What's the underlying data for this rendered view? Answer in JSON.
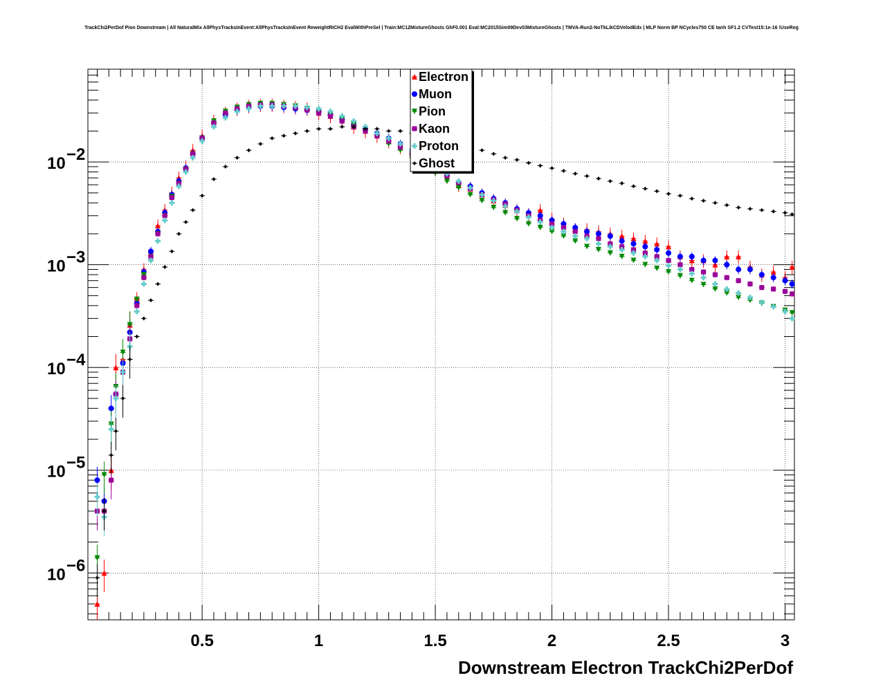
{
  "chart_data": {
    "type": "scatter",
    "title": "TrackChi2PerDof Pion Downstream | All NaturalMix AllPhysTracksInEvent:AllPhysTracksInEvent ReweightRICH2 EvalWithPreSel | Train:MC12MixtureGhosts GhF0.001 Eval:MC2015Sim09Dev03MixtureGhosts | TMVA-Run2-NoTkLikCDVelodEdx | MLP Norm BP NCycles750 CE tanh SF1.2 CVTest15:1e-16 !UseReg",
    "xlabel": "Downstream Electron TrackChi2PerDof",
    "ylabel": "",
    "xlim": [
      0.01,
      3.04
    ],
    "ylim": [
      3.5e-07,
      0.08
    ],
    "yscale": "log",
    "grid": true,
    "legend_position": "top-center",
    "x_ticks": [
      {
        "value": 0.5,
        "label": "0.5"
      },
      {
        "value": 1.0,
        "label": "1"
      },
      {
        "value": 1.5,
        "label": "1.5"
      },
      {
        "value": 2.0,
        "label": "2"
      },
      {
        "value": 2.5,
        "label": "2.5"
      },
      {
        "value": 3.0,
        "label": "3"
      }
    ],
    "y_ticks": [
      {
        "exp": -2,
        "base": "10",
        "label": "−2"
      },
      {
        "exp": -3,
        "base": "10",
        "label": "−3"
      },
      {
        "exp": -4,
        "base": "10",
        "label": "−4"
      },
      {
        "exp": -5,
        "base": "10",
        "label": "−5"
      },
      {
        "exp": -6,
        "base": "10",
        "label": "−6"
      }
    ],
    "series": [
      {
        "name": "Electron",
        "color": "#ff0000",
        "marker": "triangle-up",
        "x": [
          0.05,
          0.08,
          0.11,
          0.13,
          0.16,
          0.19,
          0.22,
          0.25,
          0.28,
          0.31,
          0.34,
          0.37,
          0.4,
          0.43,
          0.46,
          0.5,
          0.55,
          0.6,
          0.65,
          0.7,
          0.75,
          0.8,
          0.85,
          0.9,
          0.95,
          1.0,
          1.05,
          1.1,
          1.15,
          1.2,
          1.25,
          1.3,
          1.35,
          1.4,
          1.45,
          1.5,
          1.55,
          1.6,
          1.65,
          1.7,
          1.75,
          1.8,
          1.85,
          1.9,
          1.95,
          2.0,
          2.05,
          2.1,
          2.15,
          2.2,
          2.25,
          2.3,
          2.35,
          2.4,
          2.45,
          2.5,
          2.55,
          2.6,
          2.65,
          2.7,
          2.75,
          2.8,
          2.85,
          2.9,
          2.95,
          3.0,
          3.03
        ],
        "y": [
          5e-07,
          1e-06,
          1e-05,
          0.0001,
          0.00012,
          0.00026,
          0.00047,
          0.0009,
          0.0013,
          0.0024,
          0.0034,
          0.005,
          0.007,
          0.009,
          0.013,
          0.018,
          0.025,
          0.03,
          0.033,
          0.035,
          0.036,
          0.036,
          0.035,
          0.034,
          0.033,
          0.03,
          0.028,
          0.026,
          0.022,
          0.02,
          0.018,
          0.016,
          0.014,
          0.012,
          0.01,
          0.0085,
          0.0072,
          0.006,
          0.0055,
          0.0048,
          0.0042,
          0.0038,
          0.0034,
          0.0031,
          0.0034,
          0.0028,
          0.0025,
          0.0022,
          0.0022,
          0.0021,
          0.002,
          0.0019,
          0.0018,
          0.0017,
          0.0016,
          0.0015,
          0.0012,
          0.0011,
          0.0011,
          0.001,
          0.0012,
          0.0012,
          0.00095,
          0.0008,
          0.00085,
          0.00075,
          0.00095
        ],
        "yerr_rel": 0.15
      },
      {
        "name": "Muon",
        "color": "#0000ff",
        "marker": "circle",
        "x": [
          0.05,
          0.08,
          0.11,
          0.13,
          0.16,
          0.19,
          0.22,
          0.25,
          0.28,
          0.31,
          0.34,
          0.37,
          0.4,
          0.43,
          0.46,
          0.5,
          0.55,
          0.6,
          0.65,
          0.7,
          0.75,
          0.8,
          0.85,
          0.9,
          0.95,
          1.0,
          1.05,
          1.1,
          1.15,
          1.2,
          1.25,
          1.3,
          1.35,
          1.4,
          1.45,
          1.5,
          1.55,
          1.6,
          1.65,
          1.7,
          1.75,
          1.8,
          1.85,
          1.9,
          1.95,
          2.0,
          2.05,
          2.1,
          2.15,
          2.2,
          2.25,
          2.3,
          2.35,
          2.4,
          2.45,
          2.5,
          2.55,
          2.6,
          2.65,
          2.7,
          2.75,
          2.8,
          2.85,
          2.9,
          2.95,
          3.0,
          3.03
        ],
        "y": [
          8e-06,
          5e-06,
          4e-05,
          5.5e-05,
          0.00011,
          0.00022,
          0.00042,
          0.00085,
          0.00135,
          0.0021,
          0.0032,
          0.0048,
          0.0065,
          0.0087,
          0.012,
          0.017,
          0.024,
          0.029,
          0.032,
          0.034,
          0.035,
          0.035,
          0.034,
          0.033,
          0.032,
          0.031,
          0.029,
          0.026,
          0.023,
          0.021,
          0.019,
          0.017,
          0.015,
          0.013,
          0.011,
          0.009,
          0.0075,
          0.0063,
          0.0058,
          0.005,
          0.0044,
          0.004,
          0.0035,
          0.0032,
          0.003,
          0.0027,
          0.0025,
          0.0023,
          0.0021,
          0.002,
          0.0019,
          0.0017,
          0.0016,
          0.0015,
          0.0014,
          0.0013,
          0.0012,
          0.0012,
          0.0011,
          0.0011,
          0.001,
          0.0009,
          0.0009,
          0.0008,
          0.00075,
          0.0007,
          0.00065
        ],
        "yerr_rel": 0.1
      },
      {
        "name": "Pion",
        "color": "#008800",
        "marker": "triangle-down",
        "x": [
          0.05,
          0.08,
          0.11,
          0.13,
          0.16,
          0.19,
          0.22,
          0.25,
          0.28,
          0.31,
          0.34,
          0.37,
          0.4,
          0.43,
          0.46,
          0.5,
          0.55,
          0.6,
          0.65,
          0.7,
          0.75,
          0.8,
          0.85,
          0.9,
          0.95,
          1.0,
          1.05,
          1.1,
          1.15,
          1.2,
          1.25,
          1.3,
          1.35,
          1.4,
          1.45,
          1.5,
          1.55,
          1.6,
          1.65,
          1.7,
          1.75,
          1.8,
          1.85,
          1.9,
          1.95,
          2.0,
          2.05,
          2.1,
          2.15,
          2.2,
          2.25,
          2.3,
          2.35,
          2.4,
          2.45,
          2.5,
          2.55,
          2.6,
          2.65,
          2.7,
          2.75,
          2.8,
          2.85,
          2.9,
          2.95,
          3.0,
          3.03
        ],
        "y": [
          1.4e-06,
          9e-06,
          2.8e-05,
          6.5e-05,
          0.00014,
          0.00026,
          0.00046,
          0.0008,
          0.0012,
          0.002,
          0.003,
          0.0046,
          0.0062,
          0.0085,
          0.012,
          0.017,
          0.025,
          0.031,
          0.034,
          0.036,
          0.037,
          0.037,
          0.036,
          0.035,
          0.033,
          0.031,
          0.029,
          0.026,
          0.023,
          0.02,
          0.018,
          0.015,
          0.013,
          0.011,
          0.0092,
          0.0078,
          0.0065,
          0.0056,
          0.0048,
          0.0042,
          0.0036,
          0.0032,
          0.0028,
          0.0025,
          0.0023,
          0.0021,
          0.0019,
          0.0017,
          0.0015,
          0.0014,
          0.0013,
          0.0012,
          0.0011,
          0.001,
          0.00092,
          0.00085,
          0.00078,
          0.0007,
          0.00064,
          0.00058,
          0.00053,
          0.00048,
          0.00045,
          0.00042,
          0.00039,
          0.00036,
          0.00034
        ],
        "yerr_rel": 0.04
      },
      {
        "name": "Kaon",
        "color": "#990099",
        "marker": "square",
        "x": [
          0.05,
          0.08,
          0.11,
          0.13,
          0.16,
          0.19,
          0.22,
          0.25,
          0.28,
          0.31,
          0.34,
          0.37,
          0.4,
          0.43,
          0.46,
          0.5,
          0.55,
          0.6,
          0.65,
          0.7,
          0.75,
          0.8,
          0.85,
          0.9,
          0.95,
          1.0,
          1.05,
          1.1,
          1.15,
          1.2,
          1.25,
          1.3,
          1.35,
          1.4,
          1.45,
          1.5,
          1.55,
          1.6,
          1.65,
          1.7,
          1.75,
          1.8,
          1.85,
          1.9,
          1.95,
          2.0,
          2.05,
          2.1,
          2.15,
          2.2,
          2.25,
          2.3,
          2.35,
          2.4,
          2.45,
          2.5,
          2.55,
          2.6,
          2.65,
          2.7,
          2.75,
          2.8,
          2.85,
          2.9,
          2.95,
          3.0,
          3.03
        ],
        "y": [
          4e-06,
          4e-06,
          8e-06,
          5.5e-05,
          9e-05,
          0.00019,
          0.0004,
          0.00075,
          0.0012,
          0.002,
          0.003,
          0.0045,
          0.0062,
          0.0085,
          0.012,
          0.017,
          0.024,
          0.03,
          0.033,
          0.035,
          0.036,
          0.036,
          0.035,
          0.034,
          0.032,
          0.03,
          0.028,
          0.025,
          0.022,
          0.02,
          0.018,
          0.016,
          0.014,
          0.012,
          0.01,
          0.0087,
          0.0073,
          0.0063,
          0.0055,
          0.0048,
          0.0043,
          0.0039,
          0.0034,
          0.003,
          0.0027,
          0.0025,
          0.0023,
          0.0021,
          0.0019,
          0.0018,
          0.0016,
          0.0015,
          0.0014,
          0.0013,
          0.0012,
          0.0011,
          0.001,
          0.0009,
          0.00085,
          0.0008,
          0.00075,
          0.0007,
          0.00065,
          0.0006,
          0.00058,
          0.00055,
          0.00052
        ],
        "yerr_rel": 0.06
      },
      {
        "name": "Proton",
        "color": "#66cccc",
        "marker": "cross",
        "x": [
          0.05,
          0.08,
          0.11,
          0.13,
          0.16,
          0.19,
          0.22,
          0.25,
          0.28,
          0.31,
          0.34,
          0.37,
          0.4,
          0.43,
          0.46,
          0.5,
          0.55,
          0.6,
          0.65,
          0.7,
          0.75,
          0.8,
          0.85,
          0.9,
          0.95,
          1.0,
          1.05,
          1.1,
          1.15,
          1.2,
          1.25,
          1.3,
          1.35,
          1.4,
          1.45,
          1.5,
          1.55,
          1.6,
          1.65,
          1.7,
          1.75,
          1.8,
          1.85,
          1.9,
          1.95,
          2.0,
          2.05,
          2.1,
          2.15,
          2.2,
          2.25,
          2.3,
          2.35,
          2.4,
          2.45,
          2.5,
          2.55,
          2.6,
          2.65,
          2.7,
          2.75,
          2.8,
          2.85,
          2.9,
          2.95,
          3.0,
          3.03
        ],
        "y": [
          5.5e-06,
          3.5e-06,
          2.5e-05,
          5e-05,
          9e-05,
          0.00016,
          0.00035,
          0.00065,
          0.0011,
          0.0017,
          0.0027,
          0.004,
          0.0058,
          0.008,
          0.011,
          0.016,
          0.022,
          0.027,
          0.031,
          0.033,
          0.035,
          0.035,
          0.035,
          0.035,
          0.034,
          0.033,
          0.031,
          0.028,
          0.025,
          0.022,
          0.019,
          0.017,
          0.015,
          0.013,
          0.011,
          0.0092,
          0.0077,
          0.0065,
          0.0056,
          0.0048,
          0.0042,
          0.0037,
          0.0033,
          0.0029,
          0.0026,
          0.0023,
          0.0021,
          0.0019,
          0.0018,
          0.0016,
          0.0015,
          0.0014,
          0.0013,
          0.0012,
          0.0011,
          0.00098,
          0.0009,
          0.00082,
          0.00075,
          0.00065,
          0.00058,
          0.00053,
          0.00048,
          0.00043,
          0.00039,
          0.00035,
          0.0003
        ],
        "yerr_rel": 0.05
      },
      {
        "name": "Ghost",
        "color": "#000000",
        "marker": "diamond",
        "x": [
          0.05,
          0.08,
          0.11,
          0.13,
          0.16,
          0.19,
          0.22,
          0.25,
          0.28,
          0.31,
          0.34,
          0.37,
          0.4,
          0.43,
          0.46,
          0.5,
          0.55,
          0.6,
          0.65,
          0.7,
          0.75,
          0.8,
          0.85,
          0.9,
          0.95,
          1.0,
          1.05,
          1.1,
          1.15,
          1.2,
          1.25,
          1.3,
          1.35,
          1.4,
          1.45,
          1.5,
          1.55,
          1.6,
          1.65,
          1.7,
          1.75,
          1.8,
          1.85,
          1.9,
          1.95,
          2.0,
          2.05,
          2.1,
          2.15,
          2.2,
          2.25,
          2.3,
          2.35,
          2.4,
          2.45,
          2.5,
          2.55,
          2.6,
          2.65,
          2.7,
          2.75,
          2.8,
          2.85,
          2.9,
          2.95,
          3.0,
          3.03
        ],
        "y": [
          9e-07,
          4e-06,
          1.4e-05,
          2.4e-05,
          5e-05,
          0.00012,
          0.0002,
          0.0003,
          0.00045,
          0.00065,
          0.00095,
          0.00135,
          0.002,
          0.0026,
          0.0034,
          0.0047,
          0.0068,
          0.009,
          0.011,
          0.013,
          0.015,
          0.017,
          0.018,
          0.019,
          0.02,
          0.021,
          0.021,
          0.022,
          0.022,
          0.021,
          0.021,
          0.02,
          0.02,
          0.019,
          0.018,
          0.017,
          0.016,
          0.015,
          0.014,
          0.013,
          0.012,
          0.011,
          0.0105,
          0.0098,
          0.0092,
          0.0087,
          0.0082,
          0.0077,
          0.0073,
          0.0069,
          0.0065,
          0.0062,
          0.0058,
          0.0055,
          0.0052,
          0.0049,
          0.0047,
          0.0044,
          0.0042,
          0.004,
          0.0038,
          0.0036,
          0.0035,
          0.0034,
          0.0033,
          0.0032,
          0.0031
        ],
        "yerr_rel": 0.02
      }
    ]
  }
}
